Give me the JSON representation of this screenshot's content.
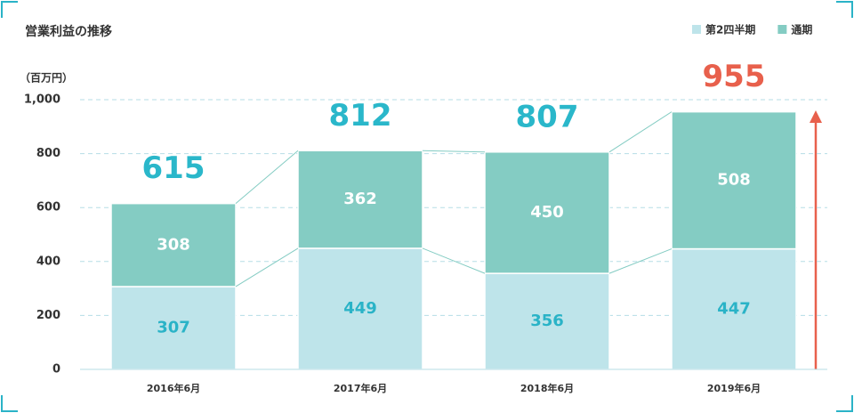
{
  "chart_data": {
    "type": "stacked-bar",
    "title": "営業利益の推移",
    "y_label": "（百万円）",
    "categories": [
      "2016年6月",
      "2017年6月",
      "2018年6月",
      "2019年6月"
    ],
    "series": [
      {
        "name": "第2四半期",
        "color": "#bee4ea",
        "label_color": "#2ab3c7",
        "values": [
          307,
          449,
          356,
          447
        ]
      },
      {
        "name": "通期",
        "color": "#84ccc3",
        "label_color": "#ffffff",
        "values": [
          308,
          362,
          450,
          508
        ]
      }
    ],
    "totals": [
      615,
      812,
      807,
      955
    ],
    "total_colors": [
      "#2ab7ca",
      "#2ab7ca",
      "#2ab7ca",
      "#e8604c"
    ],
    "ylim": [
      0,
      1000
    ],
    "yticks": [
      0,
      200,
      400,
      600,
      800,
      {
        "value": 1000,
        "label": "1,000"
      }
    ],
    "grid": true
  }
}
